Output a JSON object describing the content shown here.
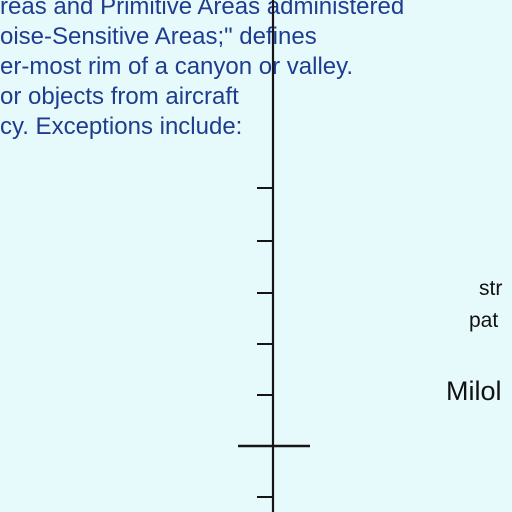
{
  "map": {
    "background_color": "#e6fafc",
    "text_color": "#1f3d8f",
    "label_color": "#111111",
    "note": {
      "lines": [
        "reas and Primitive Areas administered",
        "oise-Sensitive Areas;\" defines",
        "er-most rim of a canyon or valley.",
        "or objects from aircraft",
        "cy.  Exceptions include:"
      ]
    },
    "labels": {
      "fragment_1": "str",
      "fragment_2": "pat",
      "place_name": "Milol"
    }
  }
}
